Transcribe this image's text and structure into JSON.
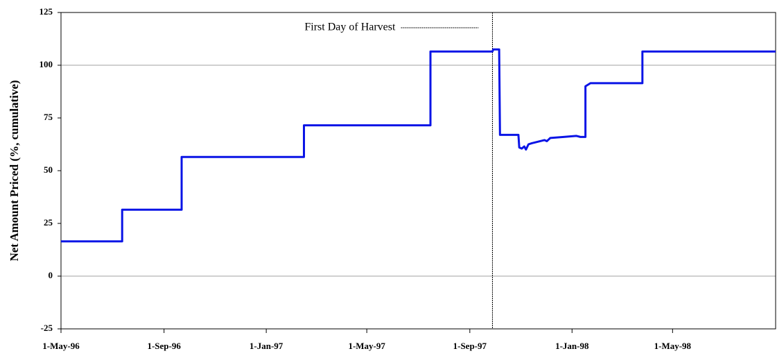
{
  "chart_data": {
    "type": "line",
    "y_label": "Net Amount Priced (%, cumulative)",
    "x": [
      "1996-05-01",
      "1996-07-13",
      "1996-07-13",
      "1996-09-22",
      "1996-09-22",
      "1997-02-15",
      "1997-02-15",
      "1997-07-16",
      "1997-07-16",
      "1997-09-28",
      "1997-09-29",
      "1997-10-06",
      "1997-10-07",
      "1997-10-29",
      "1997-10-30",
      "1997-11-02",
      "1997-11-05",
      "1997-11-07",
      "1997-11-10",
      "1997-11-14",
      "1997-11-19",
      "1997-11-24",
      "1997-11-29",
      "1997-12-02",
      "1997-12-06",
      "1997-12-22",
      "1998-01-06",
      "1998-01-11",
      "1998-01-17",
      "1998-01-17",
      "1998-01-23",
      "1998-03-26",
      "1998-03-26",
      "1998-09-01"
    ],
    "series": [
      {
        "name": "Net Amount Priced",
        "color": "#0a14e6",
        "values": [
          16.5,
          16.5,
          31.5,
          31.5,
          56.5,
          56.5,
          71.5,
          71.5,
          106.5,
          106.5,
          107.5,
          107.5,
          67,
          67,
          61,
          60.5,
          61.5,
          60,
          62.5,
          63,
          63.5,
          64,
          64.5,
          64,
          65.5,
          66,
          66.5,
          66,
          66,
          90,
          91.5,
          91.5,
          106.5,
          106.5
        ]
      }
    ],
    "vlines": [
      {
        "name": "First Day of Harvest",
        "x": "1997-09-28",
        "color": "#000000"
      }
    ],
    "xlim": [
      "1996-05-01",
      "1998-09-01"
    ],
    "xticks": [
      {
        "value": "1996-05-01",
        "label": "1-May-96"
      },
      {
        "value": "1996-09-01",
        "label": "1-Sep-96"
      },
      {
        "value": "1997-01-01",
        "label": "1-Jan-97"
      },
      {
        "value": "1997-05-01",
        "label": "1-May-97"
      },
      {
        "value": "1997-09-01",
        "label": "1-Sep-97"
      },
      {
        "value": "1998-01-01",
        "label": "1-Jan-98"
      },
      {
        "value": "1998-05-01",
        "label": "1-May-98"
      }
    ],
    "ylim": [
      -25,
      125
    ],
    "yticks": [
      -25,
      0,
      25,
      50,
      75,
      100,
      125
    ],
    "ygrid": [
      0,
      100
    ]
  }
}
